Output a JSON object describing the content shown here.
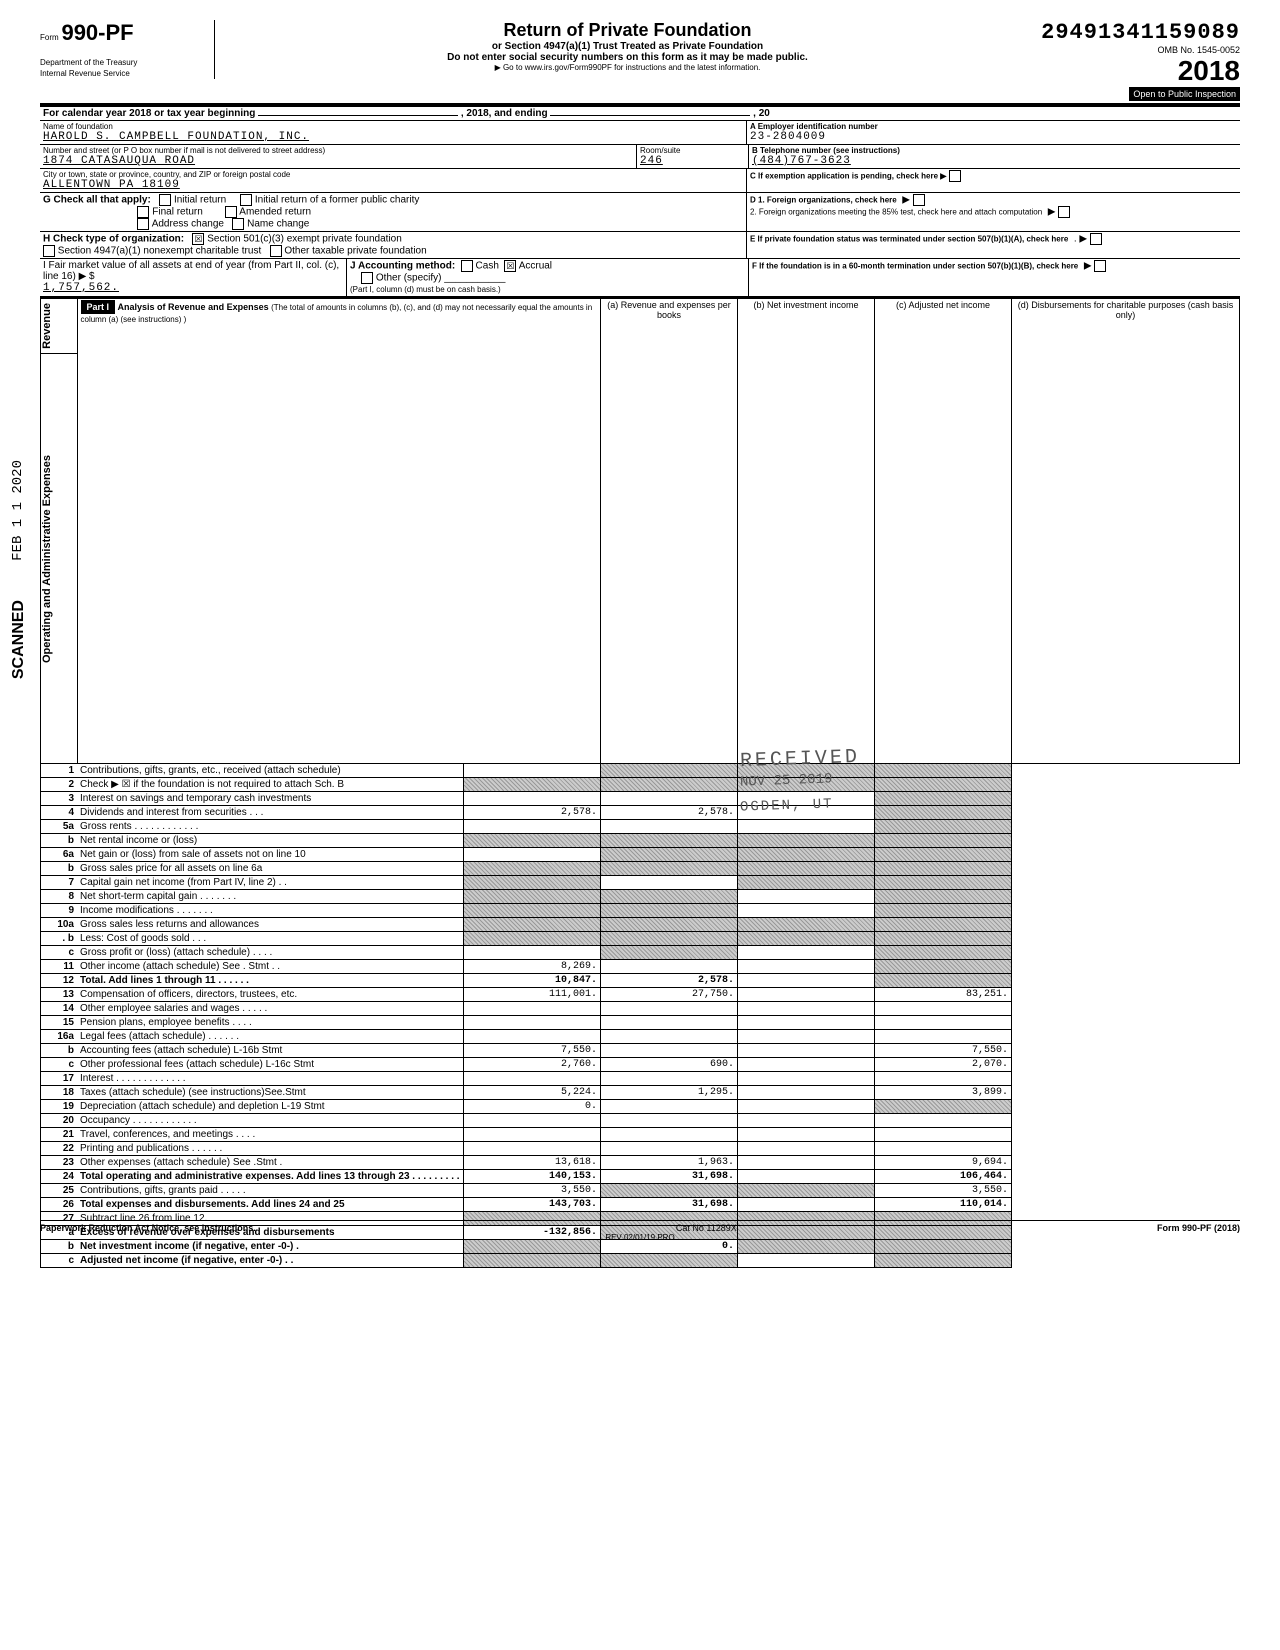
{
  "header": {
    "form_no_prefix": "Form",
    "form_no": "990-PF",
    "dept": "Department of the Treasury",
    "irs": "Internal Revenue Service",
    "title": "Return of Private Foundation",
    "sub1": "or Section 4947(a)(1) Trust Treated as Private Foundation",
    "sub2": "Do not enter social security numbers on this form as it may be made public.",
    "sub3": "▶ Go to www.irs.gov/Form990PF for instructions and the latest information.",
    "dln": "29491341159089",
    "omb": "OMB No. 1545-0052",
    "year": "2018",
    "open": "Open to Public Inspection"
  },
  "filer": {
    "cal_year_label": "For calendar year 2018 or tax year beginning",
    "cal_year_mid": ", 2018, and ending",
    "cal_year_end": ", 20",
    "name_label": "Name of foundation",
    "name": "HAROLD S. CAMPBELL FOUNDATION, INC.",
    "ein_label": "A  Employer identification number",
    "ein": "23-2804009",
    "addr_label": "Number and street (or P O box number if mail is not delivered to street address)",
    "addr": "1874 CATASAUQUA ROAD",
    "room_label": "Room/suite",
    "room": "246",
    "tel_label": "B  Telephone number (see instructions)",
    "tel": "(484)767-3623",
    "city_label": "City or town, state or province, country, and ZIP or foreign postal code",
    "city": "ALLENTOWN PA 18109",
    "c_label": "C  If exemption application is pending, check here ▶",
    "g_label": "G  Check all that apply:",
    "g_init": "Initial return",
    "g_init_former": "Initial return of a former public charity",
    "g_final": "Final return",
    "g_amended": "Amended return",
    "g_addr": "Address change",
    "g_name": "Name change",
    "d1_label": "D  1. Foreign organizations, check here",
    "d2_label": "2. Foreign organizations meeting the 85% test, check here and attach computation",
    "h_label": "H  Check type of organization:",
    "h_501c3": "Section 501(c)(3) exempt private foundation",
    "h_4947": "Section 4947(a)(1) nonexempt charitable trust",
    "h_other_tax": "Other taxable private foundation",
    "e_label": "E  If private foundation status was terminated under section 507(b)(1)(A), check here",
    "i_label": "I    Fair market value of all assets at end of year (from Part II, col. (c), line 16) ▶ $",
    "i_value": "1,757,562.",
    "j_label": "J  Accounting method:",
    "j_cash": "Cash",
    "j_accrual": "Accrual",
    "j_other": "Other (specify)",
    "j_note": "(Part I, column (d) must be on cash basis.)",
    "f_label": "F  If the foundation is in a 60-month termination under section 507(b)(1)(B), check here"
  },
  "part1": {
    "header": "Part I",
    "title": "Analysis of Revenue and Expenses",
    "note": "(The total of amounts in columns (b), (c), and (d) may not necessarily equal the amounts in column (a) (see instructions) )",
    "col_a": "(a) Revenue and expenses per books",
    "col_b": "(b) Net investment income",
    "col_c": "(c) Adjusted net income",
    "col_d": "(d) Disbursements for charitable purposes (cash basis only)"
  },
  "side_labels": {
    "revenue": "Revenue",
    "opex": "Operating and Administrative Expenses"
  },
  "rows": [
    {
      "n": "1",
      "d": "Contributions, gifts, grants, etc., received (attach schedule)",
      "a": "",
      "b": "shade",
      "c": "shade",
      "dd": "shade"
    },
    {
      "n": "2",
      "d": "Check ▶ ☒ if the foundation is not required to attach Sch. B",
      "a": "shade",
      "b": "shade",
      "c": "shade",
      "dd": "shade"
    },
    {
      "n": "3",
      "d": "Interest on savings and temporary cash investments",
      "a": "",
      "b": "",
      "c": "",
      "dd": "shade"
    },
    {
      "n": "4",
      "d": "Dividends and interest from securities    .    .    .",
      "a": "2,578.",
      "b": "2,578.",
      "c": "",
      "dd": "shade"
    },
    {
      "n": "5a",
      "d": "Gross rents .    .    .    .    .    .    .    .    .    .    .    .",
      "a": "",
      "b": "",
      "c": "",
      "dd": "shade"
    },
    {
      "n": "b",
      "d": "Net rental income or (loss)",
      "a": "shade",
      "b": "shade",
      "c": "shade",
      "dd": "shade"
    },
    {
      "n": "6a",
      "d": "Net gain or (loss) from sale of assets not on line 10",
      "a": "",
      "b": "shade",
      "c": "shade",
      "dd": "shade"
    },
    {
      "n": "b",
      "d": "Gross sales price for all assets on line 6a",
      "a": "shade",
      "b": "shade",
      "c": "shade",
      "dd": "shade"
    },
    {
      "n": "7",
      "d": "Capital gain net income (from Part IV, line 2)   .   .",
      "a": "shade",
      "b": "",
      "c": "shade",
      "dd": "shade"
    },
    {
      "n": "8",
      "d": "Net short-term capital gain   .   .   .   .   .   .   .",
      "a": "shade",
      "b": "shade",
      "c": "",
      "dd": "shade"
    },
    {
      "n": "9",
      "d": "Income modifications       .    .    .    .    .    .    .",
      "a": "shade",
      "b": "shade",
      "c": "",
      "dd": "shade"
    },
    {
      "n": "10a",
      "d": "Gross sales less returns and allowances",
      "a": "shade",
      "b": "shade",
      "c": "shade",
      "dd": "shade"
    },
    {
      "n": ". b",
      "d": "Less: Cost of goods sold     .    .    .",
      "a": "shade",
      "b": "shade",
      "c": "shade",
      "dd": "shade"
    },
    {
      "n": "c",
      "d": "Gross profit or (loss) (attach schedule)   .   .   .   .",
      "a": "",
      "b": "shade",
      "c": "",
      "dd": "shade"
    },
    {
      "n": "11",
      "d": "Other income (attach schedule) See . Stmt   .   .",
      "a": "8,269.",
      "b": "",
      "c": "",
      "dd": "shade"
    },
    {
      "n": "12",
      "d": "Total. Add lines 1 through 11   .   .   .   .   .   .",
      "a": "10,847.",
      "b": "2,578.",
      "c": "",
      "dd": "shade",
      "bold": true
    },
    {
      "n": "13",
      "d": "Compensation of officers, directors, trustees, etc.",
      "a": "111,001.",
      "b": "27,750.",
      "c": "",
      "dd": "83,251."
    },
    {
      "n": "14",
      "d": "Other employee salaries and wages .   .   .   .   .",
      "a": "",
      "b": "",
      "c": "",
      "dd": ""
    },
    {
      "n": "15",
      "d": "Pension plans, employee benefits      .   .   .   .",
      "a": "",
      "b": "",
      "c": "",
      "dd": ""
    },
    {
      "n": "16a",
      "d": "Legal fees (attach schedule)       .   .   .   .   .   .",
      "a": "",
      "b": "",
      "c": "",
      "dd": ""
    },
    {
      "n": "b",
      "d": "Accounting fees (attach schedule)    L-16b Stmt",
      "a": "7,550.",
      "b": "",
      "c": "",
      "dd": "7,550."
    },
    {
      "n": "c",
      "d": "Other professional fees (attach schedule) L-16c Stmt",
      "a": "2,760.",
      "b": "690.",
      "c": "",
      "dd": "2,070."
    },
    {
      "n": "17",
      "d": "Interest  .   .   .   .   .   .   .   .   .   .   .   .   .",
      "a": "",
      "b": "",
      "c": "",
      "dd": ""
    },
    {
      "n": "18",
      "d": "Taxes (attach schedule) (see instructions)See.Stmt",
      "a": "5,224.",
      "b": "1,295.",
      "c": "",
      "dd": "3,899."
    },
    {
      "n": "19",
      "d": "Depreciation (attach schedule) and depletion L-19 Stmt",
      "a": "0.",
      "b": "",
      "c": "",
      "dd": "shade"
    },
    {
      "n": "20",
      "d": "Occupancy .   .   .   .   .   .   .   .   .   .   .   .",
      "a": "",
      "b": "",
      "c": "",
      "dd": ""
    },
    {
      "n": "21",
      "d": "Travel, conferences, and meetings    .   .   .   .",
      "a": "",
      "b": "",
      "c": "",
      "dd": ""
    },
    {
      "n": "22",
      "d": "Printing and publications         .   .   .   .   .   .",
      "a": "",
      "b": "",
      "c": "",
      "dd": ""
    },
    {
      "n": "23",
      "d": "Other expenses (attach schedule) See .Stmt   .",
      "a": "13,618.",
      "b": "1,963.",
      "c": "",
      "dd": "9,694."
    },
    {
      "n": "24",
      "d": "Total operating and administrative expenses. Add lines 13 through 23 .   .   .   .   .   .   .   .   .",
      "a": "140,153.",
      "b": "31,698.",
      "c": "",
      "dd": "106,464.",
      "bold": true
    },
    {
      "n": "25",
      "d": "Contributions, gifts, grants paid    .   .   .   .   .",
      "a": "3,550.",
      "b": "shade",
      "c": "shade",
      "dd": "3,550."
    },
    {
      "n": "26",
      "d": "Total expenses and disbursements. Add lines 24 and 25",
      "a": "143,703.",
      "b": "31,698.",
      "c": "",
      "dd": "110,014.",
      "bold": true
    },
    {
      "n": "27",
      "d": "Subtract line 26 from line 12.",
      "a": "shade",
      "b": "shade",
      "c": "shade",
      "dd": "shade"
    },
    {
      "n": "a",
      "d": "Excess of revenue over expenses and disbursements",
      "a": "-132,856.",
      "b": "shade",
      "c": "shade",
      "dd": "shade",
      "bold": true
    },
    {
      "n": "b",
      "d": "Net investment income (if negative, enter -0-)  .",
      "a": "shade",
      "b": "0.",
      "c": "shade",
      "dd": "shade",
      "bold": true
    },
    {
      "n": "c",
      "d": "Adjusted net income (if negative, enter -0-)  .   .",
      "a": "shade",
      "b": "shade",
      "c": "",
      "dd": "shade",
      "bold": true
    }
  ],
  "footer": {
    "pra": "Paperwork Reduction Act Notice, see instructions.",
    "rev": "REV 02/01/19 PRO",
    "cat": "Cat No 11289X",
    "form": "Form 990-PF (2018)"
  },
  "stamps": {
    "received": "RECEIVED",
    "received_date": "NOV 25 2019",
    "ogden": "OGDEN, UT",
    "scanned": "SCANNED",
    "feb": "FEB 1 1 2020"
  }
}
